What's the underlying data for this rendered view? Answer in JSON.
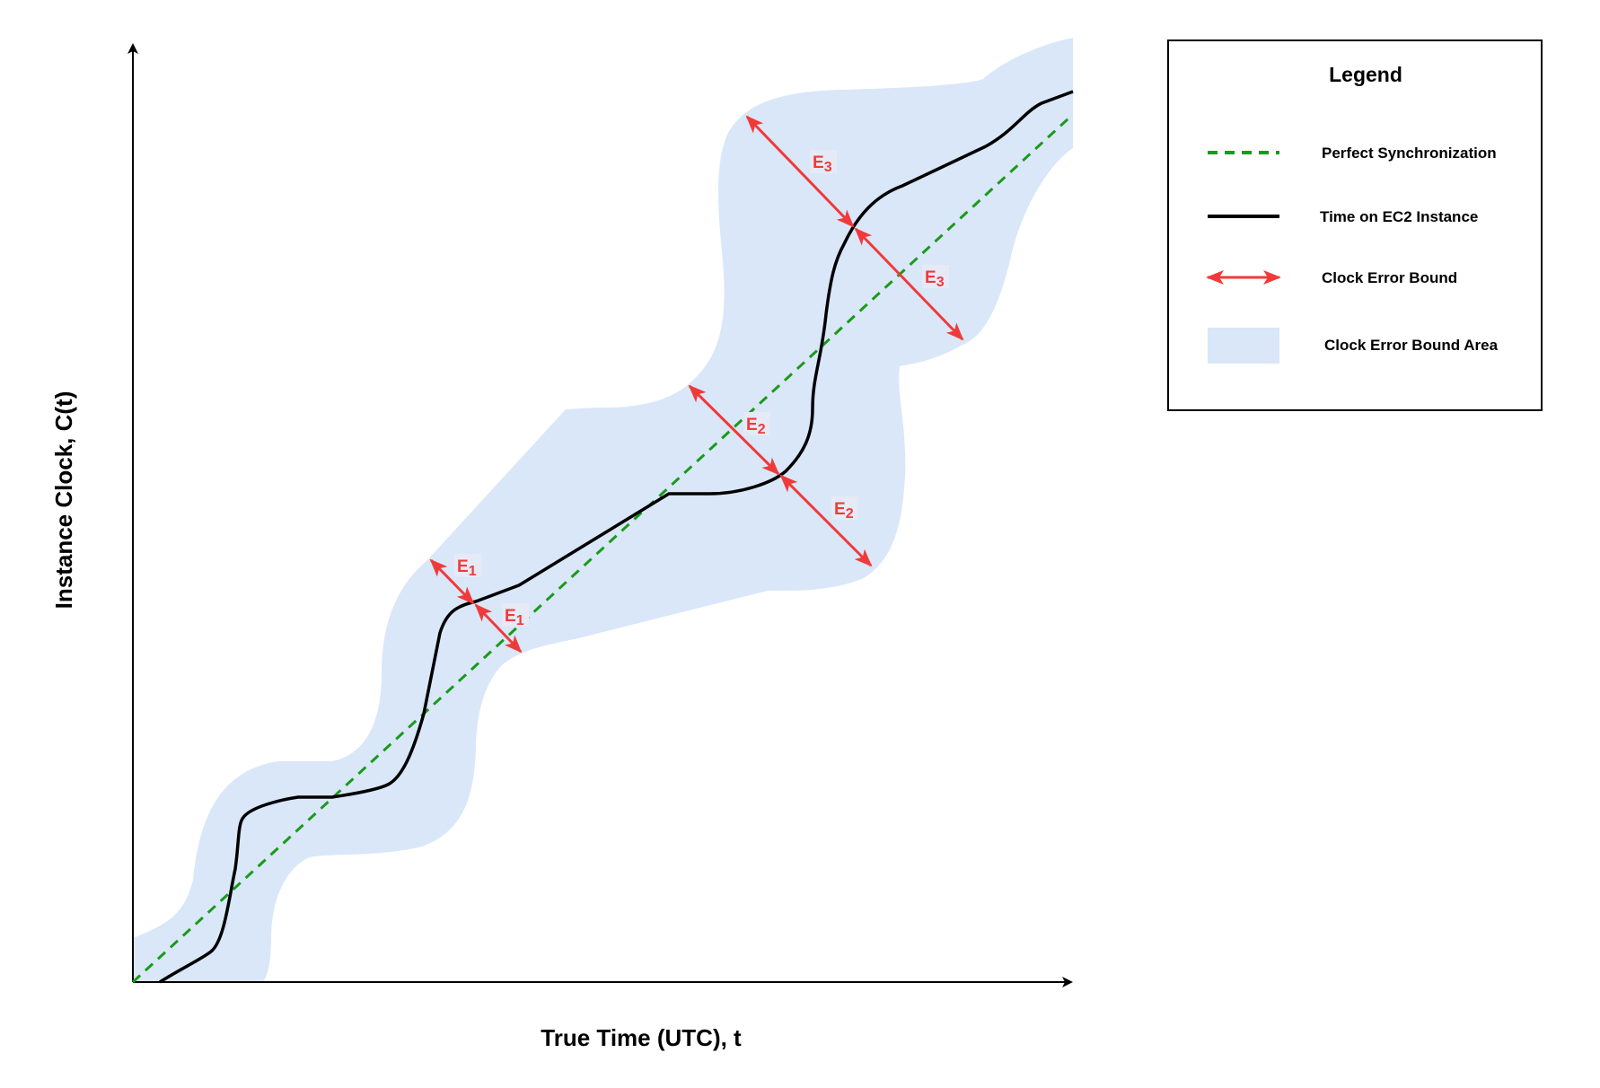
{
  "axes": {
    "x_title": "True Time (UTC), t",
    "y_title": "Instance Clock, C(t)"
  },
  "error_labels": [
    {
      "letter": "E",
      "sub": "1"
    },
    {
      "letter": "E",
      "sub": "1"
    },
    {
      "letter": "E",
      "sub": "2"
    },
    {
      "letter": "E",
      "sub": "2"
    },
    {
      "letter": "E",
      "sub": "3"
    },
    {
      "letter": "E",
      "sub": "3"
    }
  ],
  "legend": {
    "title": "Legend",
    "items": [
      {
        "label": "Perfect Synchronization",
        "symbol": "dashed-green-line"
      },
      {
        "label": "Time on EC2 Instance",
        "symbol": "solid-black-line"
      },
      {
        "label": "Clock Error Bound",
        "symbol": "red-double-arrow"
      },
      {
        "label": "Clock Error Bound Area",
        "symbol": "blue-swatch"
      }
    ]
  },
  "colors": {
    "bound_area": "#d9e7f8",
    "perfect_sync": "#1a9a1a",
    "instance_time": "#000000",
    "error_arrow": "#f03a3a"
  }
}
